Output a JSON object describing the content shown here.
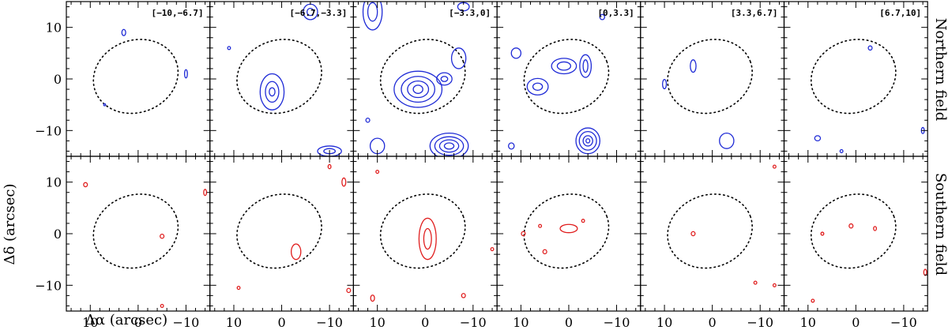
{
  "chart_data": {
    "type": "contour",
    "xlabel": "Δα (arcsec)",
    "ylabel": "Δδ (arcsec)",
    "xlim": [
      15,
      -15
    ],
    "ylim": [
      -15,
      15
    ],
    "xticks": [
      10,
      0,
      -10
    ],
    "yticks": [
      10,
      0,
      -10
    ],
    "tick_labels_x": [
      "10",
      "0",
      "−10"
    ],
    "tick_labels_y": [
      "10",
      "0",
      "−10"
    ],
    "panels": [
      "[−10,−6.7]",
      "[−6.7,−3.3]",
      "[−3.3,0]",
      "[0,3.3]",
      "[3.3,6.7]",
      "[6.7,10]"
    ],
    "rows": [
      {
        "name": "Northern field",
        "color": "#1f2bd6",
        "panels": [
          {
            "contours": [
              {
                "cx": 3,
                "cy": 9,
                "rx": 0.4,
                "ry": 0.6
              },
              {
                "cx": -10,
                "cy": 1,
                "rx": 0.3,
                "ry": 0.8
              },
              {
                "cx": 7,
                "cy": -5,
                "rx": 0.2,
                "ry": 0.2
              }
            ]
          },
          {
            "contours": [
              {
                "cx": 2,
                "cy": -2.5,
                "rx": 2.5,
                "ry": 3.5
              },
              {
                "cx": 2,
                "cy": -2.5,
                "rx": 1.4,
                "ry": 2.0
              },
              {
                "cx": 2,
                "cy": -2.5,
                "rx": 0.6,
                "ry": 0.8
              },
              {
                "cx": -6,
                "cy": 13,
                "rx": 1.5,
                "ry": 1.5
              },
              {
                "cx": -6,
                "cy": 13,
                "rx": 0.7,
                "ry": 0.7
              },
              {
                "cx": 11,
                "cy": 6,
                "rx": 0.3,
                "ry": 0.3
              },
              {
                "cx": -10,
                "cy": -14,
                "rx": 2.5,
                "ry": 1.0
              },
              {
                "cx": -10,
                "cy": -14,
                "rx": 1.2,
                "ry": 0.5
              }
            ]
          },
          {
            "contours": [
              {
                "cx": 1.5,
                "cy": -2,
                "rx": 5.0,
                "ry": 3.5
              },
              {
                "cx": 1.5,
                "cy": -2,
                "rx": 3.5,
                "ry": 2.5
              },
              {
                "cx": 1.5,
                "cy": -2,
                "rx": 2.2,
                "ry": 1.6
              },
              {
                "cx": 1.5,
                "cy": -2,
                "rx": 1.0,
                "ry": 0.8
              },
              {
                "cx": -4,
                "cy": 0,
                "rx": 1.6,
                "ry": 1.2
              },
              {
                "cx": -4,
                "cy": 0,
                "rx": 0.7,
                "ry": 0.5
              },
              {
                "cx": -7,
                "cy": 4,
                "rx": 1.5,
                "ry": 2.0
              },
              {
                "cx": -5,
                "cy": -13,
                "rx": 4.0,
                "ry": 2.5
              },
              {
                "cx": -5,
                "cy": -13,
                "rx": 3.0,
                "ry": 1.8
              },
              {
                "cx": -5,
                "cy": -13,
                "rx": 2.0,
                "ry": 1.2
              },
              {
                "cx": -5,
                "cy": -13,
                "rx": 1.0,
                "ry": 0.6
              },
              {
                "cx": 11,
                "cy": 13,
                "rx": 2.0,
                "ry": 3.5
              },
              {
                "cx": 11,
                "cy": 13,
                "rx": 1.0,
                "ry": 1.8
              },
              {
                "cx": -8,
                "cy": 14,
                "rx": 1.2,
                "ry": 0.8
              },
              {
                "cx": 10,
                "cy": -13,
                "rx": 1.5,
                "ry": 1.5
              },
              {
                "cx": 12,
                "cy": -8,
                "rx": 0.4,
                "ry": 0.4
              }
            ]
          },
          {
            "contours": [
              {
                "cx": 6.5,
                "cy": -1.5,
                "rx": 2.2,
                "ry": 1.6
              },
              {
                "cx": 6.5,
                "cy": -1.5,
                "rx": 1.0,
                "ry": 0.7
              },
              {
                "cx": 1,
                "cy": 2.5,
                "rx": 2.6,
                "ry": 1.5
              },
              {
                "cx": 1,
                "cy": 2.5,
                "rx": 1.4,
                "ry": 0.8
              },
              {
                "cx": -3.5,
                "cy": 2.5,
                "rx": 1.2,
                "ry": 2.2
              },
              {
                "cx": -3.5,
                "cy": 2.5,
                "rx": 0.5,
                "ry": 1.2
              },
              {
                "cx": -4,
                "cy": -12,
                "rx": 2.5,
                "ry": 2.5
              },
              {
                "cx": -4,
                "cy": -12,
                "rx": 1.8,
                "ry": 1.8
              },
              {
                "cx": -4,
                "cy": -12,
                "rx": 1.0,
                "ry": 1.0
              },
              {
                "cx": -4,
                "cy": -12,
                "rx": 0.4,
                "ry": 0.4
              },
              {
                "cx": 11,
                "cy": 5,
                "rx": 1.0,
                "ry": 1.0
              },
              {
                "cx": -7,
                "cy": 12,
                "rx": 0.5,
                "ry": 0.5
              },
              {
                "cx": 12,
                "cy": -13,
                "rx": 0.6,
                "ry": 0.6
              }
            ]
          },
          {
            "contours": [
              {
                "cx": 4,
                "cy": 2.5,
                "rx": 0.6,
                "ry": 1.2
              },
              {
                "cx": 10,
                "cy": -1,
                "rx": 0.4,
                "ry": 0.9
              },
              {
                "cx": -3,
                "cy": -12,
                "rx": 1.5,
                "ry": 1.5
              }
            ]
          },
          {
            "contours": [
              {
                "cx": -3,
                "cy": 6,
                "rx": 0.4,
                "ry": 0.4
              },
              {
                "cx": 8,
                "cy": -11.5,
                "rx": 0.6,
                "ry": 0.5
              },
              {
                "cx": -14,
                "cy": -10,
                "rx": 0.3,
                "ry": 0.6
              },
              {
                "cx": 3,
                "cy": -14,
                "rx": 0.3,
                "ry": 0.3
              }
            ]
          }
        ]
      },
      {
        "name": "Southern field",
        "color": "#e01e1e",
        "panels": [
          {
            "contours": [
              {
                "cx": 11,
                "cy": 9.5,
                "rx": 0.4,
                "ry": 0.4
              },
              {
                "cx": -14,
                "cy": 8,
                "rx": 0.3,
                "ry": 0.6
              },
              {
                "cx": -5,
                "cy": -0.5,
                "rx": 0.4,
                "ry": 0.4
              },
              {
                "cx": -5,
                "cy": -14,
                "rx": 0.3,
                "ry": 0.3
              }
            ]
          },
          {
            "contours": [
              {
                "cx": -3,
                "cy": -3.5,
                "rx": 1.0,
                "ry": 1.5
              },
              {
                "cx": -13,
                "cy": 10,
                "rx": 0.4,
                "ry": 0.8
              },
              {
                "cx": -10,
                "cy": 13,
                "rx": 0.3,
                "ry": 0.4
              },
              {
                "cx": 9,
                "cy": -10.5,
                "rx": 0.3,
                "ry": 0.3
              },
              {
                "cx": -14,
                "cy": -11,
                "rx": 0.4,
                "ry": 0.4
              }
            ]
          },
          {
            "contours": [
              {
                "cx": -0.5,
                "cy": -1,
                "rx": 1.8,
                "ry": 4.0
              },
              {
                "cx": -0.5,
                "cy": -1,
                "rx": 0.8,
                "ry": 2.0
              },
              {
                "cx": 10,
                "cy": 12,
                "rx": 0.3,
                "ry": 0.3
              },
              {
                "cx": -14,
                "cy": -3,
                "rx": 0.3,
                "ry": 0.3
              },
              {
                "cx": -8,
                "cy": -12,
                "rx": 0.4,
                "ry": 0.4
              },
              {
                "cx": 11,
                "cy": -12.5,
                "rx": 0.4,
                "ry": 0.6
              }
            ]
          },
          {
            "contours": [
              {
                "cx": 0,
                "cy": 1,
                "rx": 1.8,
                "ry": 0.8
              },
              {
                "cx": 9.5,
                "cy": 0,
                "rx": 0.4,
                "ry": 0.4
              },
              {
                "cx": 6,
                "cy": 1.5,
                "rx": 0.3,
                "ry": 0.3
              },
              {
                "cx": 5,
                "cy": -3.5,
                "rx": 0.4,
                "ry": 0.4
              },
              {
                "cx": -3,
                "cy": 2.5,
                "rx": 0.3,
                "ry": 0.3
              }
            ]
          },
          {
            "contours": [
              {
                "cx": 4,
                "cy": 0,
                "rx": 0.4,
                "ry": 0.4
              },
              {
                "cx": -13,
                "cy": 13,
                "rx": 0.3,
                "ry": 0.3
              },
              {
                "cx": -9,
                "cy": -9.5,
                "rx": 0.3,
                "ry": 0.3
              },
              {
                "cx": -13,
                "cy": -10,
                "rx": 0.3,
                "ry": 0.3
              }
            ]
          },
          {
            "contours": [
              {
                "cx": 1,
                "cy": 1.5,
                "rx": 0.4,
                "ry": 0.4
              },
              {
                "cx": -4,
                "cy": 1,
                "rx": 0.3,
                "ry": 0.4
              },
              {
                "cx": 7,
                "cy": 0,
                "rx": 0.3,
                "ry": 0.3
              },
              {
                "cx": -14.5,
                "cy": -7.5,
                "rx": 0.3,
                "ry": 0.6
              },
              {
                "cx": 9,
                "cy": -13,
                "rx": 0.3,
                "ry": 0.3
              }
            ]
          }
        ]
      }
    ],
    "beam_ellipse": {
      "cx": 0.5,
      "cy": 0.5,
      "rx": 9.0,
      "ry": 7.0,
      "angle_deg": -20,
      "style": "dotted"
    }
  }
}
